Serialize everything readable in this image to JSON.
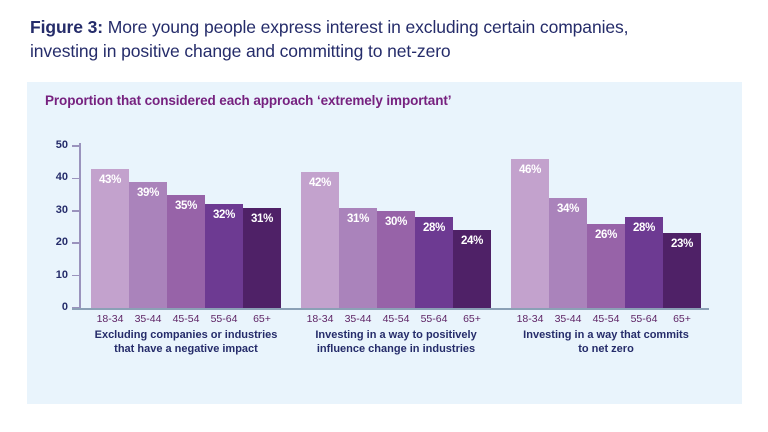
{
  "header": {
    "label": "Figure 3:",
    "line1": "More young people express interest in excluding certain companies,",
    "line2": "investing in positive change and committing to net-zero"
  },
  "chart_data": {
    "type": "bar",
    "title": "Proportion that considered each approach ‘extremely important’",
    "categories": [
      "18-34",
      "35-44",
      "45-54",
      "55-64",
      "65+"
    ],
    "groups": [
      {
        "label": "Excluding companies or industries that have a negative impact",
        "label_lines": [
          "Excluding companies or industries",
          "that have a negative impact"
        ],
        "values": [
          43,
          39,
          35,
          32,
          31
        ]
      },
      {
        "label": "Investing in a way to positively influence change in industries",
        "label_lines": [
          "Investing in a way to positively",
          "influence change in industries"
        ],
        "values": [
          42,
          31,
          30,
          28,
          24
        ]
      },
      {
        "label": "Investing in a way that commits to net zero",
        "label_lines": [
          "Investing in a way that commits",
          "to net zero"
        ],
        "values": [
          46,
          34,
          26,
          28,
          23
        ]
      }
    ],
    "value_suffix": "%",
    "ylim": [
      0,
      50
    ],
    "yticks": [
      0,
      10,
      20,
      30,
      40,
      50
    ],
    "ylabel": "",
    "xlabel": "",
    "grid": false,
    "legend_position": "none",
    "bar_colors": [
      "#c3a2cd",
      "#aa83bb",
      "#9763a8",
      "#6d3a92",
      "#4f2167"
    ]
  },
  "colors": {
    "panel_background": "#e9f4fc",
    "heading_text": "#252c6a",
    "chart_title": "#76217f",
    "y_axis": "#9a93bd",
    "baseline": "#8ba0b6",
    "age_label": "#5f2566",
    "caption_text": "#252c6a",
    "bar_value_text": "#ffffff"
  }
}
